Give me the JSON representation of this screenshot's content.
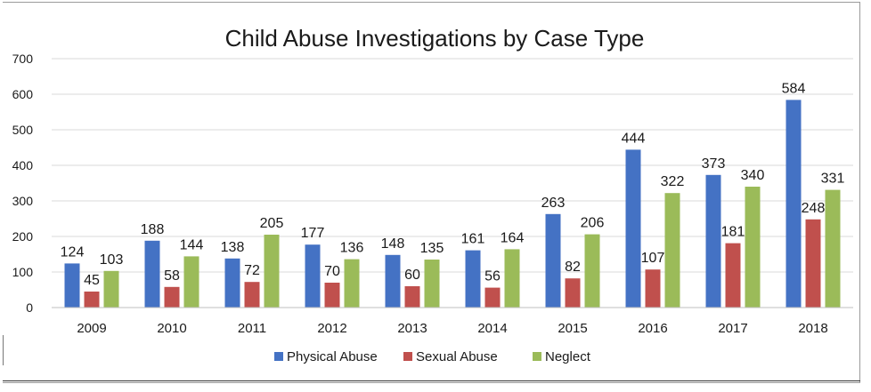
{
  "chart_data": {
    "type": "bar",
    "title": "Child Abuse Investigations by Case Type",
    "xlabel": "",
    "ylabel": "",
    "categories": [
      "2009",
      "2010",
      "2011",
      "2012",
      "2013",
      "2014",
      "2015",
      "2016",
      "2017",
      "2018"
    ],
    "series": [
      {
        "name": "Physical Abuse",
        "color": "#4472c4",
        "values": [
          124,
          188,
          138,
          177,
          148,
          161,
          263,
          444,
          373,
          584
        ]
      },
      {
        "name": "Sexual Abuse",
        "color": "#c0504d",
        "values": [
          45,
          58,
          72,
          70,
          60,
          56,
          82,
          107,
          181,
          248
        ]
      },
      {
        "name": "Neglect",
        "color": "#9bbb59",
        "values": [
          103,
          144,
          205,
          136,
          135,
          164,
          206,
          322,
          340,
          331
        ]
      }
    ],
    "ylim": [
      0,
      700
    ],
    "yticks": [
      "0",
      "100",
      "200",
      "300",
      "400",
      "500",
      "600",
      "700"
    ],
    "grid": true,
    "legend_position": "bottom"
  }
}
